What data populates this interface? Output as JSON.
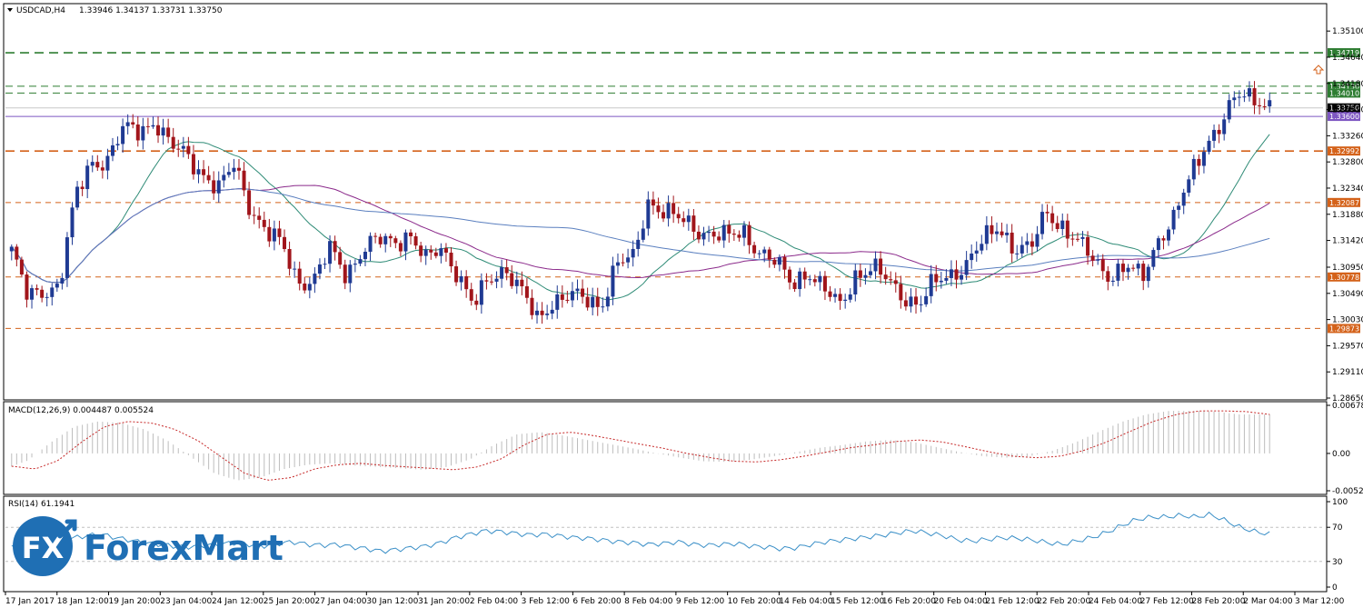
{
  "header": {
    "symbol": "USDCAD,H4",
    "ohlc": "1.33946 1.34137 1.33731 1.33750"
  },
  "macd_label": "MACD(12,26,9) 0.004487 0.005524",
  "rsi_label": "RSI(14) 61.1941",
  "logo": {
    "text": "ForexMart",
    "mark": "FX"
  },
  "colors": {
    "bull": "#1f3a93",
    "bear": "#a1151b",
    "ma_fast": "#2e8b76",
    "ma_mid": "#8b2a8b",
    "ma_slow": "#5a7fbf",
    "green_level": "#2e7d32",
    "orange_level": "#d4621a",
    "purple_level": "#7e57c2"
  },
  "chart_data": [
    {
      "type": "candlestick",
      "title": "USDCAD,H4",
      "x_ticks": [
        "17 Jan 2017",
        "18 Jan 12:00",
        "19 Jan 20:00",
        "23 Jan 04:00",
        "24 Jan 12:00",
        "25 Jan 20:00",
        "27 Jan 04:00",
        "30 Jan 12:00",
        "31 Jan 20:00",
        "2 Feb 04:00",
        "3 Feb 12:00",
        "6 Feb 20:00",
        "8 Feb 04:00",
        "9 Feb 12:00",
        "10 Feb 20:00",
        "14 Feb 04:00",
        "15 Feb 12:00",
        "16 Feb 20:00",
        "20 Feb 04:00",
        "21 Feb 12:00",
        "22 Feb 20:00",
        "24 Feb 04:00",
        "27 Feb 12:00",
        "28 Feb 20:00",
        "2 Mar 04:00",
        "3 Mar 12:00"
      ],
      "y_ticks": [
        "1.35100",
        "1.34640",
        "1.34180",
        "1.33720",
        "1.33260",
        "1.32800",
        "1.32340",
        "1.31880",
        "1.31420",
        "1.30950",
        "1.30490",
        "1.30030",
        "1.29570",
        "1.29110",
        "1.28650"
      ],
      "ylim": [
        1.2865,
        1.3555
      ],
      "close_path": [
        1.3125,
        1.304,
        1.3055,
        1.3065,
        1.3215,
        1.328,
        1.3285,
        1.3335,
        1.3335,
        1.3355,
        1.3305,
        1.3292,
        1.3262,
        1.323,
        1.3275,
        1.3202,
        1.3155,
        1.3132,
        1.3072,
        1.3072,
        1.3125,
        1.3085,
        1.3124,
        1.314,
        1.3141,
        1.3155,
        1.3103,
        1.313,
        1.3088,
        1.3023,
        1.3075,
        1.3097,
        1.3052,
        1.3,
        1.3039,
        1.3046,
        1.3035,
        1.3029,
        1.3104,
        1.3105,
        1.3214,
        1.3195,
        1.3175,
        1.3161,
        1.3157,
        1.3145,
        1.3155,
        1.3125,
        1.3101,
        1.3064,
        1.3092,
        1.3054,
        1.3025,
        1.3084,
        1.3092,
        1.3071,
        1.3047,
        1.3028,
        1.3067,
        1.3085,
        1.3102,
        1.3138,
        1.317,
        1.3128,
        1.3124,
        1.3196,
        1.3167,
        1.3134,
        1.3107,
        1.3082,
        1.3093,
        1.3075,
        1.3148,
        1.3179,
        1.3251,
        1.3317,
        1.3348,
        1.3395,
        1.3398,
        1.3377
      ],
      "levels": [
        {
          "label": "1.34719",
          "value": 1.34719,
          "color": "green"
        },
        {
          "label": "1.34130",
          "value": 1.3413,
          "color": "green"
        },
        {
          "label": "1.34010",
          "value": 1.3401,
          "color": "green"
        },
        {
          "label": "1.33750",
          "value": 1.3375,
          "color": "price"
        },
        {
          "label": "1.33600",
          "value": 1.336,
          "color": "purple"
        },
        {
          "label": "1.32992",
          "value": 1.32992,
          "color": "orange"
        },
        {
          "label": "1.32087",
          "value": 1.32087,
          "color": "orange"
        },
        {
          "label": "1.30778",
          "value": 1.30778,
          "color": "orange"
        },
        {
          "label": "1.29873",
          "value": 1.29873,
          "color": "orange"
        }
      ]
    },
    {
      "type": "histogram",
      "title": "MACD(12,26,9) 0.004487 0.005524",
      "y_ticks": [
        "0.006783",
        "0.00",
        "-0.005265"
      ],
      "ylim": [
        -0.005265,
        0.006783
      ],
      "signal_path": [
        -0.0018,
        -0.0022,
        -0.001,
        0.0016,
        0.0038,
        0.0045,
        0.0043,
        0.0034,
        0.0018,
        -0.0005,
        -0.0028,
        -0.0038,
        -0.0034,
        -0.0022,
        -0.0016,
        -0.0014,
        -0.0017,
        -0.0019,
        -0.0021,
        -0.0023,
        -0.0019,
        -0.0008,
        0.0012,
        0.0027,
        0.003,
        0.0025,
        0.0019,
        0.0013,
        0.0007,
        0.0,
        -0.0006,
        -0.0011,
        -0.0012,
        -0.0009,
        -0.0004,
        0.0002,
        0.0008,
        0.0012,
        0.0017,
        0.0019,
        0.0016,
        0.0009,
        0.0002,
        -0.0004,
        -0.0006,
        -0.0004,
        0.0004,
        0.0016,
        0.0031,
        0.0045,
        0.0055,
        0.006,
        0.006,
        0.0059,
        0.0055
      ]
    },
    {
      "type": "line",
      "title": "RSI(14) 61.1941",
      "y_ticks": [
        "100",
        "70",
        "30",
        "0"
      ],
      "ylim": [
        0,
        100
      ],
      "values": [
        48,
        46,
        50,
        54,
        57,
        60,
        62,
        58,
        55,
        52,
        50,
        48,
        47,
        49,
        50,
        52,
        50,
        48,
        51,
        53,
        50,
        49,
        50,
        47,
        45,
        42,
        44,
        46,
        48,
        52,
        58,
        62,
        66,
        65,
        63,
        61,
        62,
        60,
        58,
        57,
        55,
        53,
        52,
        50,
        51,
        53,
        50,
        49,
        50,
        51,
        48,
        47,
        45,
        46,
        50,
        53,
        55,
        57,
        59,
        61,
        64,
        66,
        63,
        60,
        55,
        54,
        56,
        58,
        57,
        55,
        52,
        50,
        54,
        58,
        64,
        72,
        79,
        82,
        82,
        84,
        82,
        85,
        78,
        70,
        65,
        62
      ]
    }
  ]
}
